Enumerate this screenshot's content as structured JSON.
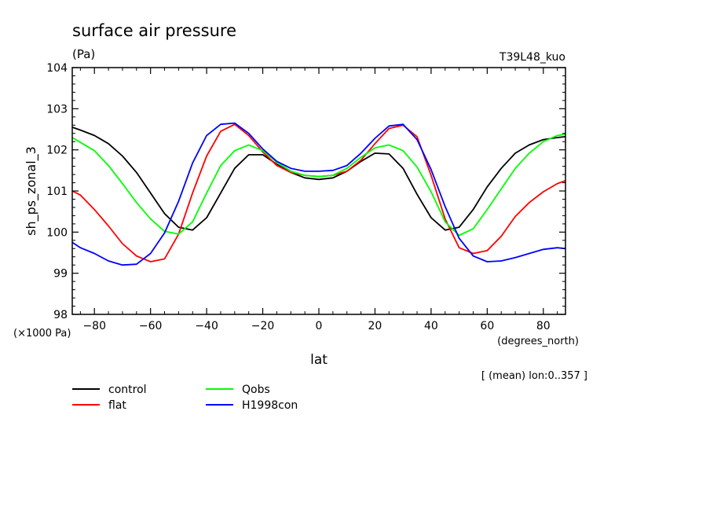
{
  "chart_data": {
    "type": "line",
    "title": "surface air pressure",
    "units": "(Pa)",
    "run_label": "T39L48_kuo",
    "ylabel": "sh_ps_zonal_3",
    "xlabel": "lat",
    "x_unit": "(degrees_north)",
    "y_unit": "(×1000 Pa)",
    "subtitle": "[ (mean) lon:0..357 ]",
    "xlim": [
      -87.9,
      87.9
    ],
    "ylim": [
      98,
      104
    ],
    "xticks": [
      -80,
      -60,
      -40,
      -20,
      0,
      20,
      40,
      60,
      80
    ],
    "yticks": [
      98,
      99,
      100,
      101,
      102,
      103,
      104
    ],
    "x": [
      -87.9,
      -85,
      -80,
      -75,
      -70,
      -65,
      -60,
      -55,
      -50,
      -45,
      -40,
      -35,
      -30,
      -25,
      -20,
      -15,
      -10,
      -5,
      0,
      5,
      10,
      15,
      20,
      25,
      30,
      35,
      40,
      45,
      50,
      55,
      60,
      65,
      70,
      75,
      80,
      85,
      87.9
    ],
    "series": [
      {
        "name": "control",
        "color": "#000000",
        "values": [
          102.55,
          102.48,
          102.35,
          102.15,
          101.85,
          101.45,
          100.95,
          100.45,
          100.12,
          100.05,
          100.35,
          100.95,
          101.55,
          101.88,
          101.88,
          101.65,
          101.45,
          101.32,
          101.28,
          101.32,
          101.48,
          101.72,
          101.92,
          101.9,
          101.55,
          100.92,
          100.35,
          100.05,
          100.12,
          100.55,
          101.1,
          101.55,
          101.92,
          102.12,
          102.25,
          102.3,
          102.32
        ]
      },
      {
        "name": "flat",
        "color": "#ff0000",
        "values": [
          101.0,
          100.9,
          100.55,
          100.15,
          99.72,
          99.42,
          99.28,
          99.35,
          99.95,
          100.95,
          101.85,
          102.45,
          102.62,
          102.35,
          101.95,
          101.62,
          101.45,
          101.38,
          101.35,
          101.38,
          101.48,
          101.75,
          102.15,
          102.52,
          102.6,
          102.32,
          101.38,
          100.32,
          99.62,
          99.48,
          99.55,
          99.9,
          100.38,
          100.72,
          100.98,
          101.18,
          101.25
        ]
      },
      {
        "name": "Qobs",
        "color": "#00ff00",
        "values": [
          102.3,
          102.18,
          101.98,
          101.62,
          101.18,
          100.72,
          100.32,
          100.02,
          99.95,
          100.25,
          100.95,
          101.62,
          101.98,
          102.12,
          101.98,
          101.7,
          101.48,
          101.38,
          101.35,
          101.38,
          101.55,
          101.82,
          102.05,
          102.12,
          101.98,
          101.58,
          100.98,
          100.25,
          99.92,
          100.08,
          100.55,
          101.05,
          101.55,
          101.92,
          102.2,
          102.35,
          102.38
        ]
      },
      {
        "name": "H1998con",
        "color": "#0000ff",
        "values": [
          99.75,
          99.62,
          99.48,
          99.3,
          99.2,
          99.22,
          99.48,
          99.98,
          100.75,
          101.68,
          102.35,
          102.62,
          102.65,
          102.4,
          102.02,
          101.72,
          101.55,
          101.48,
          101.48,
          101.5,
          101.62,
          101.92,
          102.28,
          102.58,
          102.62,
          102.25,
          101.52,
          100.62,
          99.85,
          99.42,
          99.28,
          99.3,
          99.38,
          99.48,
          99.58,
          99.62,
          99.6
        ]
      }
    ]
  }
}
